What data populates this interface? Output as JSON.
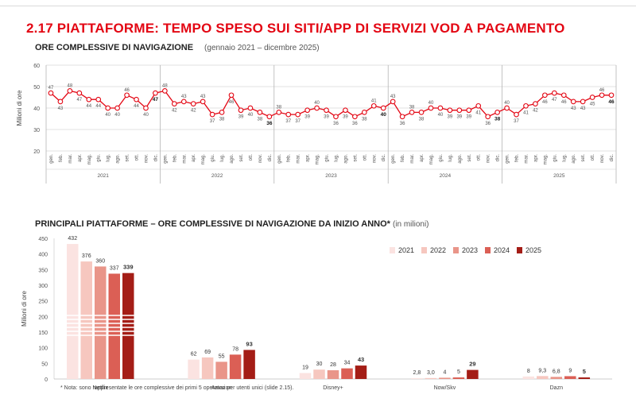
{
  "header": {
    "title": "2.17 PIATTAFORME: TEMPO SPESO SUI SITI/APP DI  SERVIZI VOD A PAGAMENTO"
  },
  "section1": {
    "title": "ORE COMPLESSIVE DI NAVIGAZIONE",
    "subtitle": "(gennaio 2021 – dicembre 2025)"
  },
  "section2": {
    "title": "PRINCIPALI PIATTAFORME – ORE COMPLESSIVE DI NAVIGAZIONE DA INIZIO ANNO*",
    "subtitle": "(in milioni)"
  },
  "note": "* Nota: sono rappresentate le ore complessive dei primi 5 operatori per utenti unici (slide 2.15).",
  "chart_data": [
    {
      "type": "line",
      "ylabel": "Milioni di ore",
      "ylim": [
        20,
        60
      ],
      "yticks": [
        20,
        30,
        40,
        50,
        60
      ],
      "years": [
        "2021",
        "2022",
        "2023",
        "2024",
        "2025"
      ],
      "months": [
        "gen.",
        "feb.",
        "mar.",
        "apr.",
        "mag.",
        "giu.",
        "lug.",
        "ago.",
        "set.",
        "ott.",
        "nov.",
        "dic."
      ],
      "color": "#e30613",
      "values": [
        47,
        43,
        48,
        47,
        44,
        44,
        40,
        40,
        46,
        44,
        40,
        47,
        48,
        42,
        43,
        42,
        43,
        37,
        38,
        46,
        39,
        40,
        38,
        36,
        38,
        37,
        37,
        39,
        40,
        39,
        36,
        39,
        36,
        38,
        41,
        40,
        43,
        36,
        38,
        38,
        40,
        40,
        39,
        39,
        39,
        41,
        36,
        38,
        40,
        37,
        41,
        42,
        46,
        47,
        46,
        43,
        43,
        45,
        46,
        46
      ],
      "bold_labels": [
        11,
        23,
        35,
        47,
        59
      ]
    },
    {
      "type": "bar",
      "ylabel": "Milioni di ore",
      "ylim": [
        0,
        450
      ],
      "yticks": [
        0,
        50,
        100,
        150,
        200,
        250,
        300,
        350,
        400,
        450
      ],
      "axis_break": true,
      "categories": [
        "Netflix",
        "Amazon",
        "Disney+",
        "Now/Skv",
        "Dazn"
      ],
      "series": [
        {
          "name": "2021",
          "color": "#fbe3e1",
          "values": [
            432,
            62,
            19,
            2.8,
            8
          ],
          "labels": [
            "432",
            "62",
            "19",
            "2,8",
            "8"
          ]
        },
        {
          "name": "2022",
          "color": "#f6c7bf",
          "values": [
            376,
            69,
            30,
            3.0,
            9.3
          ],
          "labels": [
            "376",
            "69",
            "30",
            "3,0",
            "9,3"
          ]
        },
        {
          "name": "2023",
          "color": "#e99589",
          "values": [
            360,
            55,
            28,
            4,
            6.8
          ],
          "labels": [
            "360",
            "55",
            "28",
            "4",
            "6,8"
          ]
        },
        {
          "name": "2024",
          "color": "#db5f55",
          "values": [
            337,
            78,
            34,
            5,
            9
          ],
          "labels": [
            "337",
            "78",
            "34",
            "5",
            "9"
          ]
        },
        {
          "name": "2025",
          "color": "#a41d16",
          "values": [
            339,
            93,
            43,
            29,
            5
          ],
          "labels": [
            "339",
            "93",
            "43",
            "29",
            "5"
          ]
        }
      ]
    }
  ]
}
